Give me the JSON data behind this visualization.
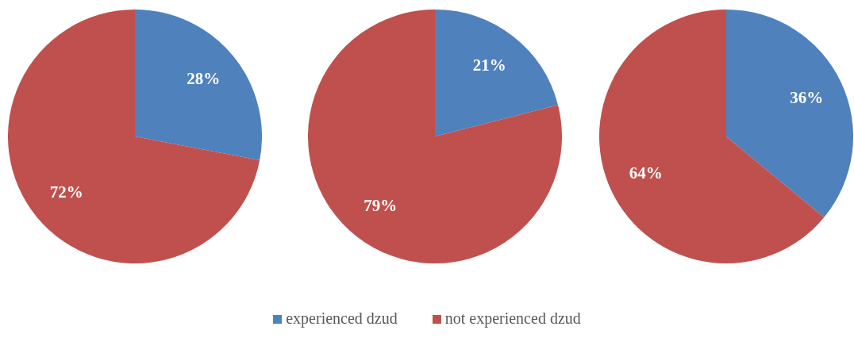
{
  "chart_data": [
    {
      "type": "pie",
      "categories": [
        "experienced dzud",
        "not experienced dzud"
      ],
      "values": [
        28,
        72
      ],
      "value_labels": [
        "28%",
        "72%"
      ],
      "colors": [
        "#4f81bd",
        "#c0504d"
      ],
      "legend": "bottom"
    },
    {
      "type": "pie",
      "categories": [
        null,
        null
      ],
      "values": [
        21,
        79
      ],
      "value_labels": [
        "21%",
        "79%"
      ],
      "colors": [
        "#4f81bd",
        "#c0504d"
      ]
    },
    {
      "type": "pie",
      "categories": [
        null,
        null
      ],
      "values": [
        36,
        64
      ],
      "value_labels": [
        "36%",
        "64%"
      ],
      "colors": [
        "#4f81bd",
        "#c0504d"
      ]
    }
  ]
}
